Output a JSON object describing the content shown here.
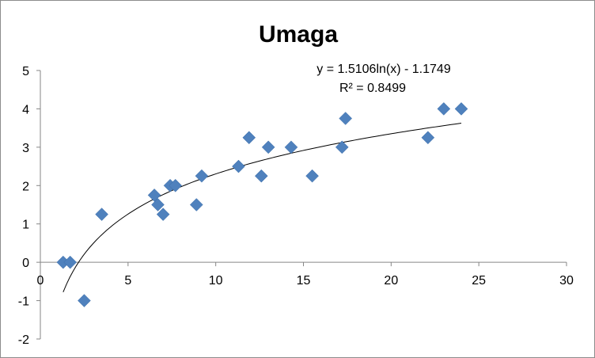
{
  "chart_data": {
    "type": "scatter",
    "title": "Umaga",
    "xlim": [
      0,
      30
    ],
    "ylim": [
      -2,
      5
    ],
    "x_ticks": [
      0,
      5,
      10,
      15,
      20,
      25,
      30
    ],
    "y_ticks": [
      -2,
      -1,
      0,
      1,
      2,
      3,
      4,
      5
    ],
    "x_tick_labels": [
      "0",
      "5",
      "10",
      "15",
      "20",
      "25",
      "30"
    ],
    "y_tick_labels": [
      "-2",
      "-1",
      "0",
      "1",
      "2",
      "3",
      "4",
      "5"
    ],
    "grid": false,
    "marker_color": "#4f81bd",
    "trendline_color": "#000000",
    "points": [
      {
        "x": 1.3,
        "y": 0
      },
      {
        "x": 1.7,
        "y": 0
      },
      {
        "x": 2.5,
        "y": -1
      },
      {
        "x": 3.5,
        "y": 1.25
      },
      {
        "x": 6.5,
        "y": 1.75
      },
      {
        "x": 6.7,
        "y": 1.5
      },
      {
        "x": 7.0,
        "y": 1.25
      },
      {
        "x": 7.4,
        "y": 2
      },
      {
        "x": 7.7,
        "y": 2
      },
      {
        "x": 8.9,
        "y": 1.5
      },
      {
        "x": 9.2,
        "y": 2.25
      },
      {
        "x": 11.3,
        "y": 2.5
      },
      {
        "x": 11.9,
        "y": 3.25
      },
      {
        "x": 12.6,
        "y": 2.25
      },
      {
        "x": 13.0,
        "y": 3
      },
      {
        "x": 14.3,
        "y": 3
      },
      {
        "x": 15.5,
        "y": 2.25
      },
      {
        "x": 17.2,
        "y": 3
      },
      {
        "x": 17.4,
        "y": 3.75
      },
      {
        "x": 22.1,
        "y": 3.25
      },
      {
        "x": 23.0,
        "y": 4
      },
      {
        "x": 24.0,
        "y": 4
      }
    ],
    "trendline": {
      "type": "logarithmic",
      "a": 1.5106,
      "b": -1.1749,
      "x_range": [
        1.3,
        24.0
      ],
      "equation_label": "y = 1.5106ln(x) - 1.1749",
      "r2_label": "R² = 0.8499"
    }
  }
}
